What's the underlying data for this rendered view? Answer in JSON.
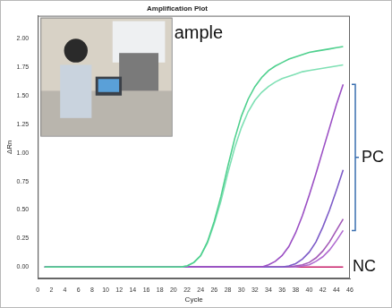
{
  "chart_data": {
    "type": "line",
    "title": "Amplification Plot",
    "x_label": "Cycle",
    "y_label": "ΔRn",
    "x": [
      1,
      2,
      3,
      4,
      5,
      6,
      7,
      8,
      9,
      10,
      11,
      12,
      13,
      14,
      15,
      16,
      17,
      18,
      19,
      20,
      21,
      22,
      23,
      24,
      25,
      26,
      27,
      28,
      29,
      30,
      31,
      32,
      33,
      34,
      35,
      36,
      37,
      38,
      39,
      40,
      41,
      42,
      43,
      44,
      45
    ],
    "series": [
      {
        "color": "#4fd08e",
        "values": [
          0,
          0,
          0,
          0,
          0,
          0,
          0,
          0,
          0,
          0,
          0,
          0,
          0,
          0,
          0,
          0,
          0,
          0,
          0,
          0,
          0,
          0.01,
          0.04,
          0.1,
          0.22,
          0.4,
          0.62,
          0.88,
          1.12,
          1.32,
          1.47,
          1.58,
          1.66,
          1.72,
          1.76,
          1.79,
          1.82,
          1.84,
          1.86,
          1.88,
          1.89,
          1.9,
          1.91,
          1.92,
          1.93
        ]
      },
      {
        "color": "#7fe0b4",
        "values": [
          0,
          0,
          0,
          0,
          0,
          0,
          0,
          0,
          0,
          0,
          0,
          0,
          0,
          0,
          0,
          0,
          0,
          0,
          0,
          0,
          0,
          0.01,
          0.04,
          0.1,
          0.21,
          0.38,
          0.58,
          0.82,
          1.04,
          1.22,
          1.36,
          1.46,
          1.53,
          1.58,
          1.62,
          1.65,
          1.67,
          1.69,
          1.71,
          1.72,
          1.73,
          1.74,
          1.75,
          1.76,
          1.77
        ]
      },
      {
        "color": "#9b4fc4",
        "values": [
          0,
          0,
          0,
          0,
          0,
          0,
          0,
          0,
          0,
          0,
          0,
          0,
          0,
          0,
          0,
          0,
          0,
          0,
          0,
          0,
          0,
          0,
          0,
          0,
          0,
          0,
          0,
          0,
          0,
          0,
          0,
          0,
          0,
          0.02,
          0.05,
          0.1,
          0.18,
          0.3,
          0.45,
          0.63,
          0.82,
          1.02,
          1.22,
          1.42,
          1.6
        ]
      },
      {
        "color": "#7d5cc8",
        "values": [
          0,
          0,
          0,
          0,
          0,
          0,
          0,
          0,
          0,
          0,
          0,
          0,
          0,
          0,
          0,
          0,
          0,
          0,
          0,
          0,
          0,
          0,
          0,
          0,
          0,
          0,
          0,
          0,
          0,
          0,
          0,
          0,
          0,
          0,
          0,
          0,
          0.01,
          0.03,
          0.07,
          0.13,
          0.22,
          0.35,
          0.5,
          0.67,
          0.85
        ]
      },
      {
        "color": "#a35ab8",
        "values": [
          0,
          0,
          0,
          0,
          0,
          0,
          0,
          0,
          0,
          0,
          0,
          0,
          0,
          0,
          0,
          0,
          0,
          0,
          0,
          0,
          0,
          0,
          0,
          0,
          0,
          0,
          0,
          0,
          0,
          0,
          0,
          0,
          0,
          0,
          0,
          0,
          0,
          0.01,
          0.02,
          0.04,
          0.08,
          0.14,
          0.22,
          0.32,
          0.42
        ]
      },
      {
        "color": "#b06ad0",
        "values": [
          0,
          0,
          0,
          0,
          0,
          0,
          0,
          0,
          0,
          0,
          0,
          0,
          0,
          0,
          0,
          0,
          0,
          0,
          0,
          0,
          0,
          0,
          0,
          0,
          0,
          0,
          0,
          0,
          0,
          0,
          0,
          0,
          0,
          0,
          0,
          0,
          0,
          0,
          0.01,
          0.02,
          0.05,
          0.09,
          0.15,
          0.23,
          0.32
        ]
      },
      {
        "color": "#c8206a",
        "values": [
          0,
          0,
          0,
          0,
          0,
          0,
          0,
          0,
          0,
          0,
          0,
          0,
          0,
          0,
          0,
          0,
          0,
          0,
          0,
          0,
          0,
          0,
          0,
          0,
          0,
          0,
          0,
          0,
          0,
          0,
          0,
          0,
          0,
          0,
          0,
          0,
          0,
          0,
          0,
          0,
          0,
          0,
          0,
          0,
          0
        ]
      }
    ],
    "xlim": [
      0,
      46
    ],
    "xticks": [
      0,
      2,
      4,
      6,
      8,
      10,
      12,
      14,
      16,
      18,
      20,
      22,
      24,
      26,
      28,
      30,
      32,
      34,
      36,
      38,
      40,
      42,
      44,
      46
    ],
    "ylim": [
      -0.1,
      2.2
    ],
    "yticks": [
      {
        "value": 0,
        "label": "0.00"
      },
      {
        "value": 0.25,
        "label": "0.25"
      },
      {
        "value": 0.5,
        "label": "0.50"
      },
      {
        "value": 0.75,
        "label": "0.75"
      },
      {
        "value": 1,
        "label": "1.00"
      },
      {
        "value": 1.25,
        "label": "1.25"
      },
      {
        "value": 1.5,
        "label": "1.50"
      },
      {
        "value": 1.75,
        "label": "1.75"
      },
      {
        "value": 2,
        "label": "2.00"
      }
    ],
    "grid": false,
    "annotations": [
      {
        "text": "ample"
      },
      {
        "text": "PC"
      },
      {
        "text": "NC"
      }
    ]
  }
}
